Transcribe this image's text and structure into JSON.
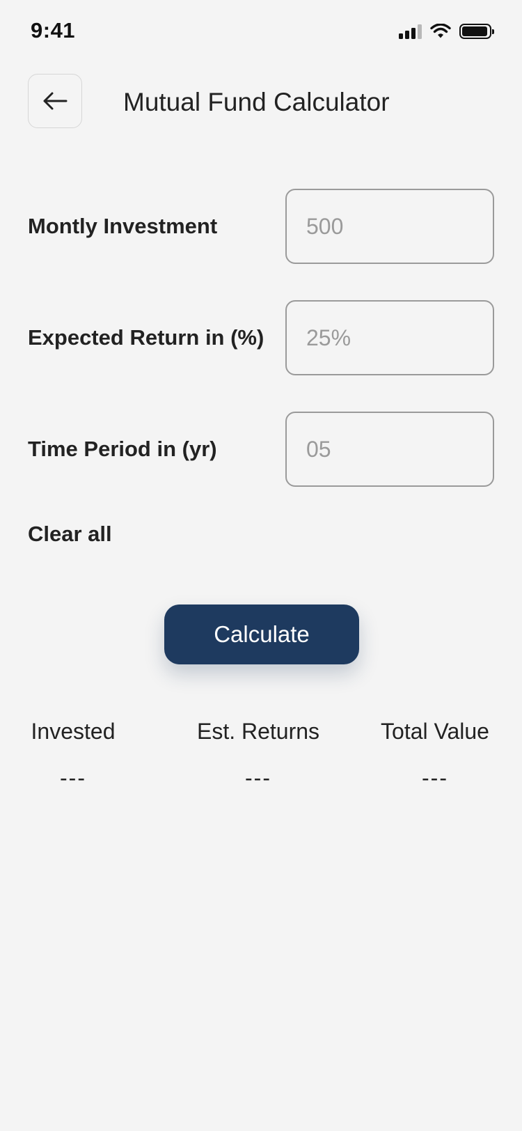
{
  "status_bar": {
    "time": "9:41",
    "icons": [
      "cellular-signal-icon",
      "wifi-icon",
      "battery-icon"
    ]
  },
  "header": {
    "back_icon": "arrow-left-icon",
    "title": "Mutual Fund Calculator"
  },
  "form": {
    "fields": [
      {
        "label": "Montly Investment",
        "value": "",
        "placeholder": "500"
      },
      {
        "label": "Expected Return in (%)",
        "value": "",
        "placeholder": "25%"
      },
      {
        "label": "Time Period in (yr)",
        "value": "",
        "placeholder": "05"
      }
    ],
    "clear_label": "Clear all"
  },
  "actions": {
    "calculate_label": "Calculate"
  },
  "results": {
    "invested": {
      "label": "Invested",
      "value": "---"
    },
    "est_returns": {
      "label": "Est. Returns",
      "value": "---"
    },
    "total_value": {
      "label": "Total Value",
      "value": "---"
    }
  },
  "colors": {
    "background": "#f4f4f4",
    "primary_button": "#1e3a5f",
    "input_border": "#9a9a9a",
    "placeholder_text": "#9a9a9a",
    "text": "#222222"
  }
}
